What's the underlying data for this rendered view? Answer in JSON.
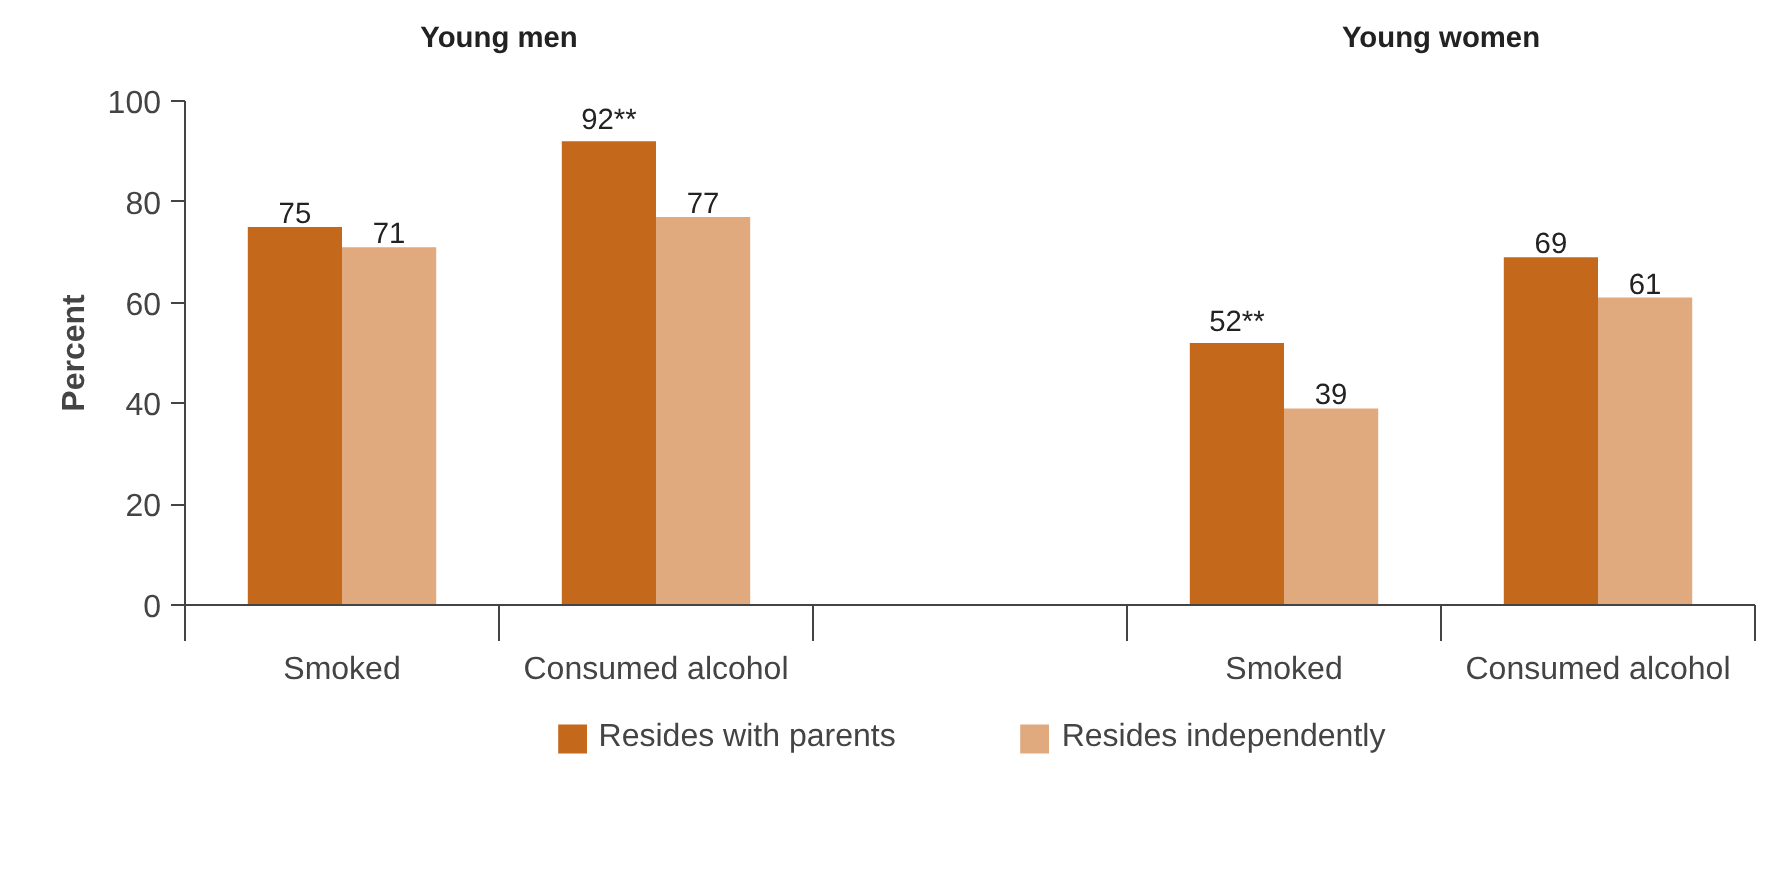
{
  "chart_data": {
    "type": "bar",
    "categories": [
      "Smoked",
      "Consumed alcohol",
      null,
      "Smoked",
      "Consumed alcohol"
    ],
    "series": [
      {
        "name": "Resides with parents",
        "color": "#c4681c",
        "values": [
          75,
          92,
          null,
          52,
          69
        ],
        "value_labels": [
          "75",
          "92**",
          null,
          "52**",
          "69"
        ]
      },
      {
        "name": "Resides independently",
        "color": "#e0aa7e",
        "values": [
          71,
          77,
          null,
          39,
          61
        ],
        "value_labels": [
          "71",
          "77",
          null,
          "39",
          "61"
        ]
      }
    ],
    "ylabel": "Percent",
    "ylim": [
      0,
      100
    ],
    "yticks": [
      0,
      20,
      40,
      60,
      80,
      100
    ],
    "annotations": [
      "Young men",
      "Young women"
    ],
    "grid": false,
    "legend": "bottom"
  }
}
